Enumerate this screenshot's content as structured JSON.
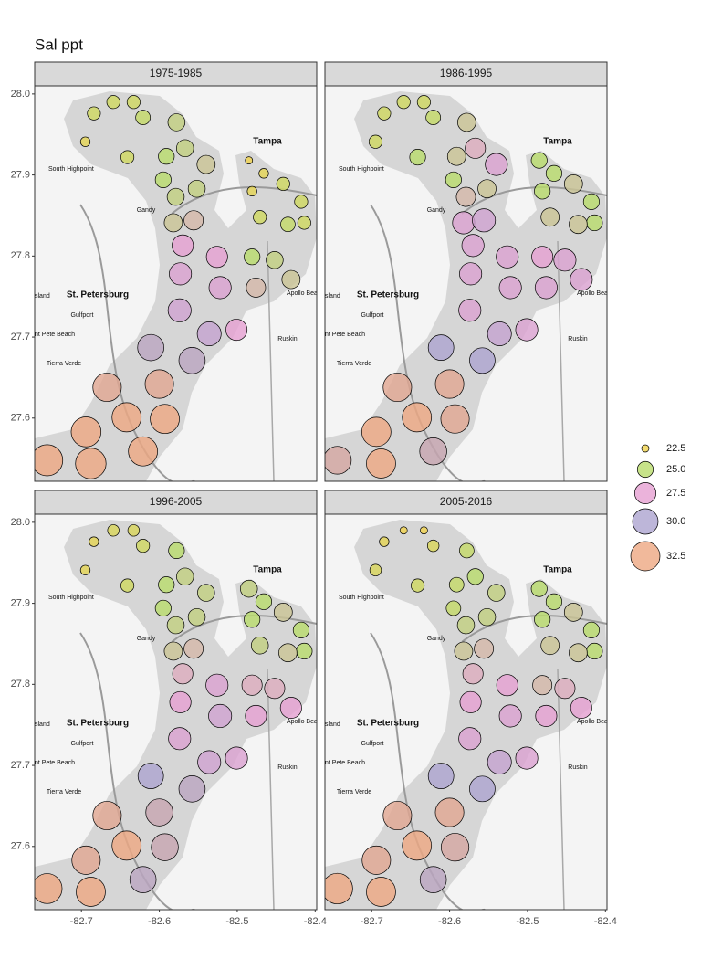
{
  "chart_data": {
    "type": "bubble",
    "title": "Sal ppt",
    "facets": [
      {
        "title": "1975-1985",
        "values": [
          24,
          24,
          24,
          24.5,
          25.5,
          23,
          24,
          25,
          25.5,
          26,
          25,
          25.5,
          25.5,
          26,
          26.5,
          27.5,
          27.5,
          28,
          28,
          25,
          25.5,
          26.5,
          26,
          28.5,
          29,
          27.5,
          30.5,
          30.5,
          32,
          32,
          32.5,
          32.5,
          33,
          32.5,
          33.5,
          34,
          22.5,
          23,
          24,
          23,
          24,
          24,
          24.5,
          24
        ]
      },
      {
        "title": "1986-1995",
        "values": [
          24,
          24,
          24,
          24.5,
          26,
          24,
          25,
          26,
          27,
          28,
          25,
          26,
          26.5,
          28,
          28.5,
          28,
          28,
          28,
          28,
          27.5,
          28,
          28,
          28,
          28,
          29,
          28,
          30,
          30,
          32,
          32,
          32.5,
          32,
          32.5,
          31,
          32.5,
          31.5,
          25,
          25,
          26,
          25,
          25,
          25,
          26,
          26
        ]
      },
      {
        "title": "1996-2005",
        "values": [
          23,
          23.5,
          23.5,
          24,
          25,
          23,
          24,
          25,
          25.5,
          25.5,
          25,
          25.5,
          25.5,
          26,
          26.5,
          27,
          28,
          27.5,
          28.5,
          27,
          27,
          27.5,
          27.5,
          28,
          28.5,
          28,
          30,
          30.5,
          32,
          31,
          32.5,
          31,
          32,
          30.5,
          32.5,
          33,
          25.5,
          25,
          26,
          25,
          25,
          25,
          26,
          25.5
        ]
      },
      {
        "title": "2005-2016",
        "values": [
          23,
          22.5,
          22.5,
          23.5,
          24.5,
          23.5,
          24,
          24.5,
          25,
          25.5,
          24.5,
          25.5,
          25.5,
          26,
          26.5,
          27,
          27.5,
          27.5,
          28,
          26.5,
          27,
          27.5,
          27.5,
          28,
          29,
          28,
          30,
          30,
          32,
          32,
          32.5,
          31.5,
          32,
          30.5,
          32.5,
          33.5,
          25,
          25,
          26,
          25,
          25,
          25,
          26,
          26
        ]
      }
    ],
    "x": [
      -82.684,
      -82.659,
      -82.633,
      -82.621,
      -82.578,
      -82.695,
      -82.641,
      -82.591,
      -82.567,
      -82.54,
      -82.595,
      -82.552,
      -82.579,
      -82.582,
      -82.556,
      -82.57,
      -82.526,
      -82.573,
      -82.522,
      -82.481,
      -82.452,
      -82.476,
      -82.431,
      -82.574,
      -82.536,
      -82.501,
      -82.611,
      -82.558,
      -82.667,
      -82.6,
      -82.642,
      -82.593,
      -82.694,
      -82.621,
      -82.688,
      -82.744,
      -82.485,
      -82.466,
      -82.441,
      -82.481,
      -82.418,
      -82.414,
      -82.435,
      -82.471
    ],
    "y": [
      27.976,
      27.99,
      27.99,
      27.971,
      27.965,
      27.941,
      27.922,
      27.923,
      27.933,
      27.913,
      27.894,
      27.883,
      27.873,
      27.841,
      27.844,
      27.813,
      27.799,
      27.778,
      27.761,
      27.799,
      27.795,
      27.761,
      27.771,
      27.733,
      27.704,
      27.709,
      27.687,
      27.671,
      27.638,
      27.642,
      27.601,
      27.599,
      27.583,
      27.559,
      27.544,
      27.548,
      27.918,
      27.902,
      27.889,
      27.88,
      27.867,
      27.841,
      27.839,
      27.848
    ],
    "xlim": [
      -82.76,
      -82.398
    ],
    "ylim": [
      27.522,
      28.01
    ],
    "xticks": [
      -82.7,
      -82.6,
      -82.5,
      -82.4
    ],
    "yticks": [
      27.6,
      27.7,
      27.8,
      27.9,
      {
        "value": 28,
        "label": "28.0"
      }
    ],
    "legend": [
      {
        "value": 22.5,
        "label": "22.5",
        "color": "#f0d24c"
      },
      {
        "value": 25,
        "label": "25.0",
        "color": "#b9dc6c"
      },
      {
        "value": 27.5,
        "label": "27.5",
        "color": "#e6a0d2"
      },
      {
        "value": 30,
        "label": "30.0",
        "color": "#ada4cf"
      },
      {
        "value": 32.5,
        "label": "32.5",
        "color": "#eea782"
      }
    ],
    "map_labels": [
      "Tampa",
      "South Highpoint",
      "Gandy",
      "St. Petersburg",
      "Gulfport",
      "nt Pete Beach",
      "Tierra Verde",
      "Ruskin",
      "Apollo Bea",
      "sland"
    ]
  }
}
